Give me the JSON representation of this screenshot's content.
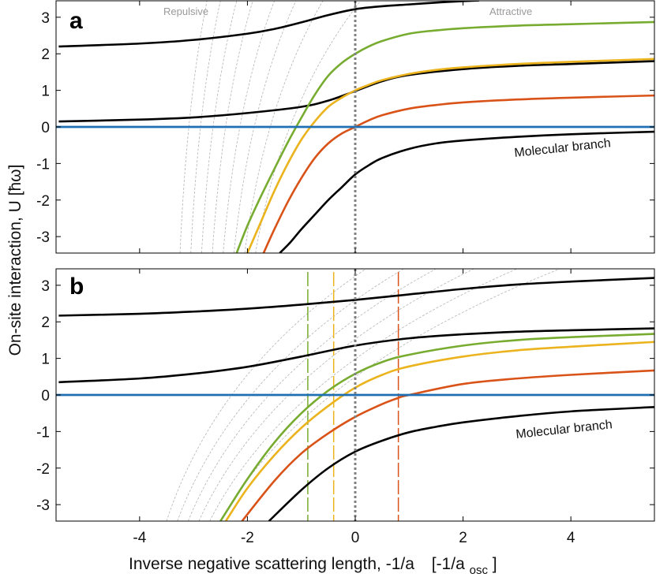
{
  "chart_data": {
    "type": "line",
    "shared": {
      "xlabel_main": "Inverse negative scattering length, -1/a",
      "xlabel_unit_prefix": "[-1/a",
      "xlabel_unit_sub": "osc",
      "xlabel_unit_suffix": "]",
      "ylabel": "On-site interaction, U  [ħω]",
      "xlim": [
        -5.55,
        5.55
      ],
      "ylim": [
        -3.45,
        3.45
      ],
      "xticks": [
        -4,
        -2,
        0,
        2,
        4
      ],
      "xtick_labels": [
        "-4",
        "-2",
        "0",
        "2",
        "4"
      ],
      "yticks": [
        -3,
        -2,
        -1,
        0,
        1,
        2,
        3
      ],
      "ytick_labels": [
        "-3",
        "-2",
        "-1",
        "0",
        "1",
        "2",
        "3"
      ],
      "colors": {
        "black": "#000000",
        "blue": "#1f6fb4",
        "green": "#77ac30",
        "yellow": "#ebb31d",
        "orange": "#d95319",
        "gray": "#b4b4b4",
        "zero_line": "#808080"
      },
      "zero_x": 0
    },
    "panels": [
      {
        "label": "a",
        "annotations": {
          "left": "Repulsive",
          "right": "Attractive",
          "branch": "Molecular branch"
        },
        "series": [
          {
            "name": "black-upper",
            "color": "black",
            "x": [
              -5.5,
              -4.0,
              -3.0,
              -2.0,
              -1.5,
              -1.0,
              -0.5,
              0.0,
              0.5,
              1.0,
              1.5,
              2.0,
              2.3
            ],
            "y": [
              2.2,
              2.28,
              2.38,
              2.55,
              2.68,
              2.86,
              3.06,
              3.22,
              3.3,
              3.35,
              3.4,
              3.44,
              3.46
            ]
          },
          {
            "name": "black-middle",
            "color": "black",
            "x": [
              -5.5,
              -4.0,
              -3.0,
              -2.0,
              -1.0,
              -0.5,
              0.0,
              0.5,
              1.0,
              2.0,
              3.0,
              4.0,
              5.55
            ],
            "y": [
              0.15,
              0.2,
              0.26,
              0.38,
              0.55,
              0.72,
              0.98,
              1.25,
              1.42,
              1.58,
              1.67,
              1.72,
              1.8
            ]
          },
          {
            "name": "green",
            "color": "green",
            "x": [
              -2.2,
              -2.0,
              -1.75,
              -1.5,
              -1.25,
              -1.0,
              -0.75,
              -0.5,
              -0.25,
              0.0,
              0.25,
              0.5,
              1.0,
              1.5,
              2.0,
              3.0,
              4.0,
              5.55
            ],
            "y": [
              -3.45,
              -2.7,
              -1.9,
              -1.15,
              -0.42,
              0.25,
              0.88,
              1.4,
              1.75,
              2.0,
              2.2,
              2.35,
              2.55,
              2.64,
              2.7,
              2.77,
              2.81,
              2.87
            ]
          },
          {
            "name": "yellow",
            "color": "yellow",
            "x": [
              -2.0,
              -1.75,
              -1.5,
              -1.25,
              -1.0,
              -0.75,
              -0.5,
              -0.25,
              0.0,
              0.25,
              0.5,
              1.0,
              1.5,
              2.0,
              3.0,
              4.0,
              5.55
            ],
            "y": [
              -3.45,
              -2.6,
              -1.75,
              -1.0,
              -0.35,
              0.15,
              0.55,
              0.8,
              1.0,
              1.15,
              1.28,
              1.45,
              1.56,
              1.63,
              1.72,
              1.78,
              1.86
            ]
          },
          {
            "name": "orange",
            "color": "orange",
            "x": [
              -1.7,
              -1.5,
              -1.25,
              -1.0,
              -0.75,
              -0.5,
              -0.25,
              0.0,
              0.25,
              0.5,
              1.0,
              1.5,
              2.0,
              3.0,
              4.0,
              5.55
            ],
            "y": [
              -3.45,
              -2.8,
              -2.05,
              -1.4,
              -0.85,
              -0.45,
              -0.18,
              0.0,
              0.18,
              0.32,
              0.5,
              0.6,
              0.67,
              0.75,
              0.8,
              0.86
            ]
          },
          {
            "name": "black-molecular",
            "color": "black",
            "x": [
              -1.4,
              -1.2,
              -1.0,
              -0.75,
              -0.5,
              -0.25,
              0.0,
              0.25,
              0.5,
              1.0,
              1.5,
              2.0,
              3.0,
              4.0,
              5.55
            ],
            "y": [
              -3.45,
              -3.15,
              -2.8,
              -2.4,
              -2.0,
              -1.65,
              -1.3,
              -1.05,
              -0.85,
              -0.6,
              -0.45,
              -0.37,
              -0.27,
              -0.2,
              -0.13
            ]
          },
          {
            "name": "blue-zero",
            "color": "blue",
            "x": [
              -5.55,
              5.55
            ],
            "y": [
              0,
              0
            ]
          }
        ],
        "gray_dashed_x_at_bottom": [
          -3.25,
          -3.05,
          -2.85,
          -2.65,
          -2.45,
          -2.25,
          -2.05,
          -1.85
        ],
        "gray_dashed_x_at_top": [
          -2.75,
          -2.5,
          -2.2,
          -1.9,
          -1.5,
          -1.1,
          -0.6,
          0.1
        ],
        "vertical_markers": []
      },
      {
        "label": "b",
        "annotations": {
          "branch": "Molecular branch"
        },
        "series": [
          {
            "name": "black-upper",
            "color": "black",
            "x": [
              -5.5,
              -4.0,
              -3.0,
              -2.0,
              -1.0,
              0.0,
              1.0,
              2.0,
              3.0,
              4.0,
              5.55
            ],
            "y": [
              2.17,
              2.22,
              2.28,
              2.36,
              2.47,
              2.6,
              2.75,
              2.9,
              3.02,
              3.1,
              3.2
            ]
          },
          {
            "name": "black-middle",
            "color": "black",
            "x": [
              -5.5,
              -4.0,
              -3.0,
              -2.0,
              -1.0,
              0.0,
              1.0,
              2.0,
              3.0,
              4.0,
              5.55
            ],
            "y": [
              0.35,
              0.45,
              0.58,
              0.77,
              1.05,
              1.35,
              1.55,
              1.66,
              1.73,
              1.77,
              1.82
            ]
          },
          {
            "name": "green",
            "color": "green",
            "x": [
              -2.5,
              -2.0,
              -1.5,
              -1.0,
              -0.5,
              0.0,
              0.5,
              1.0,
              2.0,
              3.0,
              4.0,
              5.55
            ],
            "y": [
              -3.45,
              -2.3,
              -1.3,
              -0.5,
              0.12,
              0.58,
              0.9,
              1.1,
              1.35,
              1.5,
              1.58,
              1.67
            ]
          },
          {
            "name": "yellow",
            "color": "yellow",
            "x": [
              -2.4,
              -2.0,
              -1.5,
              -1.0,
              -0.5,
              0.0,
              0.5,
              1.0,
              2.0,
              3.0,
              4.0,
              5.55
            ],
            "y": [
              -3.45,
              -2.55,
              -1.65,
              -0.9,
              -0.3,
              0.2,
              0.55,
              0.78,
              1.05,
              1.22,
              1.32,
              1.45
            ]
          },
          {
            "name": "orange",
            "color": "orange",
            "x": [
              -2.1,
              -1.5,
              -1.0,
              -0.5,
              0.0,
              0.5,
              0.8,
              1.0,
              2.0,
              3.0,
              4.0,
              5.55
            ],
            "y": [
              -3.45,
              -2.35,
              -1.6,
              -1.05,
              -0.6,
              -0.25,
              -0.08,
              0.0,
              0.3,
              0.45,
              0.55,
              0.67
            ]
          },
          {
            "name": "black-molecular",
            "color": "black",
            "x": [
              -1.6,
              -1.0,
              -0.5,
              0.0,
              0.5,
              1.0,
              1.5,
              2.0,
              3.0,
              4.0,
              5.55
            ],
            "y": [
              -3.45,
              -2.6,
              -2.0,
              -1.55,
              -1.25,
              -1.02,
              -0.87,
              -0.75,
              -0.58,
              -0.45,
              -0.33
            ]
          },
          {
            "name": "blue-zero",
            "color": "blue",
            "x": [
              -5.55,
              5.55
            ],
            "y": [
              0,
              0
            ]
          }
        ],
        "gray_dashed_x_at_bottom": [
          -3.5,
          -3.3,
          -3.1,
          -2.9,
          -2.7,
          -2.5
        ],
        "gray_dashed_x_at_top": [
          0.2,
          0.9,
          1.5,
          2.2,
          3.0,
          3.8
        ],
        "vertical_markers": [
          {
            "x": -0.88,
            "color": "green"
          },
          {
            "x": -0.4,
            "color": "yellow"
          },
          {
            "x": 0.8,
            "color": "orange"
          }
        ]
      }
    ]
  }
}
